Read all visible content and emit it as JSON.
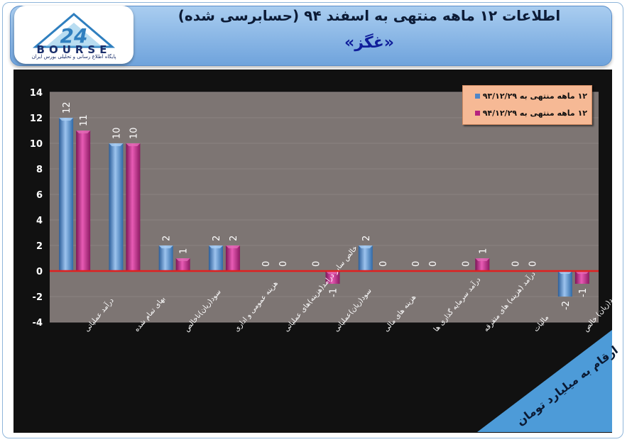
{
  "header": {
    "title": "اطلاعات ۱۲ ماهه منتهی به اسفند ۹۴ (حسابرسی شده)",
    "subtitle": "«غگز»",
    "logo_text": "BOURSE",
    "logo_number": "24",
    "logo_subtitle": "پایگاه اطلاع رسانی و تحلیلی بورس ایران"
  },
  "note": "ارقام به میلیارد تومان",
  "colors": {
    "series1": "#4f86c8",
    "series2": "#b5227e",
    "zero_line": "#e02020",
    "plot_bg": "#7d7573",
    "legend_bg": "#f6b995"
  },
  "chart_data": {
    "type": "bar",
    "title": "",
    "xlabel": "",
    "ylabel": "",
    "ylim": [
      -4,
      14
    ],
    "yticks": [
      14,
      12,
      10,
      8,
      6,
      4,
      2,
      0,
      -2,
      -4
    ],
    "ytick_labels": [
      "14",
      "12",
      "10",
      "8",
      "6",
      "4",
      "2",
      "0",
      "-2",
      "-4"
    ],
    "grid": true,
    "legend_position": "top-right",
    "categories": [
      "درآمد عملیاتی",
      "بهای تمام شده",
      "سود(زیان)ناخالص",
      "هزینه عمومی و اداری",
      "خالص سایر درامد(هزینه)های عملیاتی",
      "سود(زیان)عملیاتی",
      "هزینه های مالی",
      "درآمد سرمایه گذاری ها",
      "درآمد (هزینه) های متفرقه",
      "مالیات",
      "سود(زیان) خالص"
    ],
    "series": [
      {
        "name": "۱۲ ماهه منتهی به ۹۳/۱۲/۲۹",
        "values": [
          12,
          10,
          2,
          2,
          0,
          0,
          2,
          0,
          0,
          0,
          -2
        ],
        "labels": [
          "12",
          "10",
          "2",
          "2",
          "0",
          "0",
          "2",
          "0",
          "0",
          "0",
          "-2"
        ]
      },
      {
        "name": "۱۲ ماهه منتهی به ۹۴/۱۲/۲۹",
        "values": [
          11,
          10,
          1,
          2,
          0,
          -1,
          0,
          0,
          1,
          0,
          -1
        ],
        "labels": [
          "11",
          "10",
          "1",
          "2",
          "0",
          "-1",
          "0",
          "0",
          "1",
          "0",
          "-1"
        ]
      }
    ]
  }
}
